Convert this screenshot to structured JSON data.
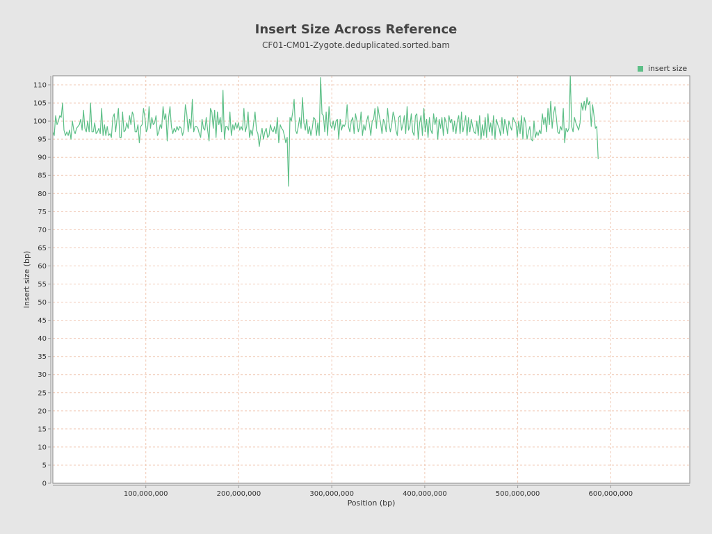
{
  "chart_data": {
    "type": "line",
    "title": "Insert Size Across Reference",
    "subtitle": "CF01-CM01-Zygote.deduplicated.sorted.bam",
    "xlabel": "Position (bp)",
    "ylabel": "Insert size (bp)",
    "xlim": [
      0,
      685000000
    ],
    "ylim": [
      0,
      112.5
    ],
    "x_ticks": [
      100000000,
      200000000,
      300000000,
      400000000,
      500000000,
      600000000
    ],
    "x_tick_labels": [
      "100,000,000",
      "200,000,000",
      "300,000,000",
      "400,000,000",
      "500,000,000",
      "600,000,000"
    ],
    "y_ticks": [
      0,
      5,
      10,
      15,
      20,
      25,
      30,
      35,
      40,
      45,
      50,
      55,
      60,
      65,
      70,
      75,
      80,
      85,
      90,
      95,
      100,
      105,
      110
    ],
    "grid": true,
    "legend_position": "top-right",
    "series": [
      {
        "name": "insert size",
        "color": "#5dbf87",
        "x_step": 1500000,
        "values": [
          97.0,
          96.0,
          101.5,
          99.0,
          100.0,
          101.5,
          101.0,
          105.0,
          97.5,
          96.0,
          97.0,
          96.0,
          97.5,
          95.0,
          100.0,
          97.5,
          96.5,
          98.0,
          98.5,
          99.0,
          100.5,
          97.5,
          103.0,
          98.0,
          97.0,
          100.0,
          97.0,
          105.0,
          97.0,
          97.0,
          99.5,
          96.5,
          97.0,
          98.0,
          96.5,
          103.5,
          96.0,
          99.0,
          96.0,
          98.5,
          96.0,
          96.5,
          95.5,
          101.0,
          102.0,
          97.0,
          100.5,
          103.5,
          95.5,
          95.5,
          102.5,
          97.0,
          97.5,
          99.5,
          98.0,
          101.5,
          99.0,
          102.5,
          101.5,
          97.0,
          97.0,
          99.0,
          94.0,
          98.5,
          99.0,
          103.5,
          101.0,
          97.0,
          98.0,
          104.0,
          98.0,
          101.0,
          99.0,
          99.5,
          101.5,
          96.0,
          97.0,
          99.0,
          98.0,
          104.0,
          100.5,
          102.0,
          94.5,
          101.0,
          104.0,
          98.5,
          96.5,
          98.0,
          97.0,
          98.5,
          97.5,
          98.5,
          98.0,
          96.0,
          97.5,
          104.5,
          102.0,
          97.0,
          100.5,
          98.0,
          106.0,
          97.0,
          98.5,
          98.5,
          98.0,
          96.5,
          95.5,
          100.5,
          98.0,
          97.5,
          101.0,
          97.5,
          94.5,
          103.5,
          102.5,
          98.0,
          103.0,
          95.5,
          102.5,
          99.0,
          101.0,
          97.0,
          108.5,
          95.0,
          98.5,
          98.5,
          97.5,
          102.5,
          96.0,
          99.0,
          97.5,
          99.5,
          98.0,
          99.5,
          97.5,
          98.5,
          97.5,
          103.5,
          97.0,
          98.5,
          102.5,
          95.5,
          97.5,
          96.0,
          99.5,
          102.5,
          97.5,
          96.5,
          93.0,
          96.0,
          98.0,
          95.0,
          97.0,
          98.0,
          95.5,
          96.0,
          99.0,
          97.5,
          97.0,
          98.5,
          96.5,
          101.0,
          94.0,
          99.0,
          98.0,
          97.5,
          96.0,
          94.0,
          95.5,
          82.0,
          101.0,
          100.0,
          102.5,
          106.0,
          97.5,
          96.5,
          98.5,
          101.0,
          98.0,
          106.5,
          99.5,
          97.5,
          100.5,
          96.5,
          98.5,
          96.0,
          98.0,
          101.0,
          100.5,
          96.0,
          99.5,
          96.0,
          112.0,
          102.0,
          101.5,
          97.0,
          102.5,
          96.0,
          104.0,
          99.0,
          98.0,
          100.0,
          97.5,
          100.0,
          100.5,
          95.0,
          100.5,
          97.5,
          99.0,
          98.5,
          99.5,
          104.5,
          98.5,
          97.0,
          100.0,
          101.0,
          96.5,
          102.0,
          100.0,
          97.0,
          98.5,
          102.5,
          96.0,
          99.0,
          97.5,
          100.0,
          101.5,
          99.0,
          96.0,
          100.0,
          100.5,
          103.5,
          98.0,
          104.0,
          101.5,
          99.5,
          96.5,
          100.5,
          99.5,
          97.0,
          103.5,
          99.5,
          97.0,
          99.0,
          102.5,
          101.0,
          97.5,
          96.0,
          101.0,
          101.5,
          97.5,
          99.0,
          101.5,
          96.5,
          104.0,
          97.5,
          98.5,
          102.0,
          97.0,
          96.0,
          101.5,
          102.0,
          95.0,
          99.5,
          101.5,
          96.0,
          103.5,
          97.0,
          100.5,
          95.5,
          101.0,
          97.5,
          96.5,
          102.0,
          99.0,
          101.0,
          95.0,
          100.5,
          98.0,
          101.0,
          96.0,
          101.0,
          99.5,
          96.5,
          101.5,
          99.5,
          100.5,
          97.0,
          100.0,
          96.5,
          100.0,
          101.5,
          96.5,
          102.5,
          97.0,
          99.0,
          101.5,
          96.0,
          101.0,
          97.0,
          100.5,
          98.5,
          97.0,
          96.5,
          100.0,
          96.0,
          101.5,
          95.0,
          99.0,
          96.0,
          101.0,
          95.5,
          102.0,
          97.0,
          99.5,
          96.0,
          101.5,
          95.0,
          100.5,
          99.0,
          98.0,
          96.0,
          101.0,
          96.5,
          100.5,
          99.0,
          96.0,
          100.0,
          98.5,
          97.5,
          101.0,
          100.0,
          99.5,
          95.5,
          100.0,
          96.5,
          101.5,
          95.0,
          101.0,
          99.5,
          95.0,
          97.0,
          98.5,
          95.0,
          94.5,
          100.0,
          95.5,
          97.0,
          96.0,
          97.5,
          96.5,
          102.0,
          99.0,
          101.0,
          97.0,
          103.5,
          99.0,
          105.5,
          98.0,
          102.0,
          104.0,
          101.0,
          97.0,
          96.5,
          98.5,
          97.5,
          103.5,
          94.0,
          98.0,
          97.0,
          98.0,
          112.5,
          98.5,
          97.0,
          101.0,
          99.5,
          98.5,
          97.5,
          99.5,
          105.0,
          103.0,
          105.5,
          103.0,
          106.5,
          104.5,
          105.5,
          98.5,
          104.5,
          101.5,
          98.0,
          98.5,
          89.5
        ]
      }
    ]
  }
}
